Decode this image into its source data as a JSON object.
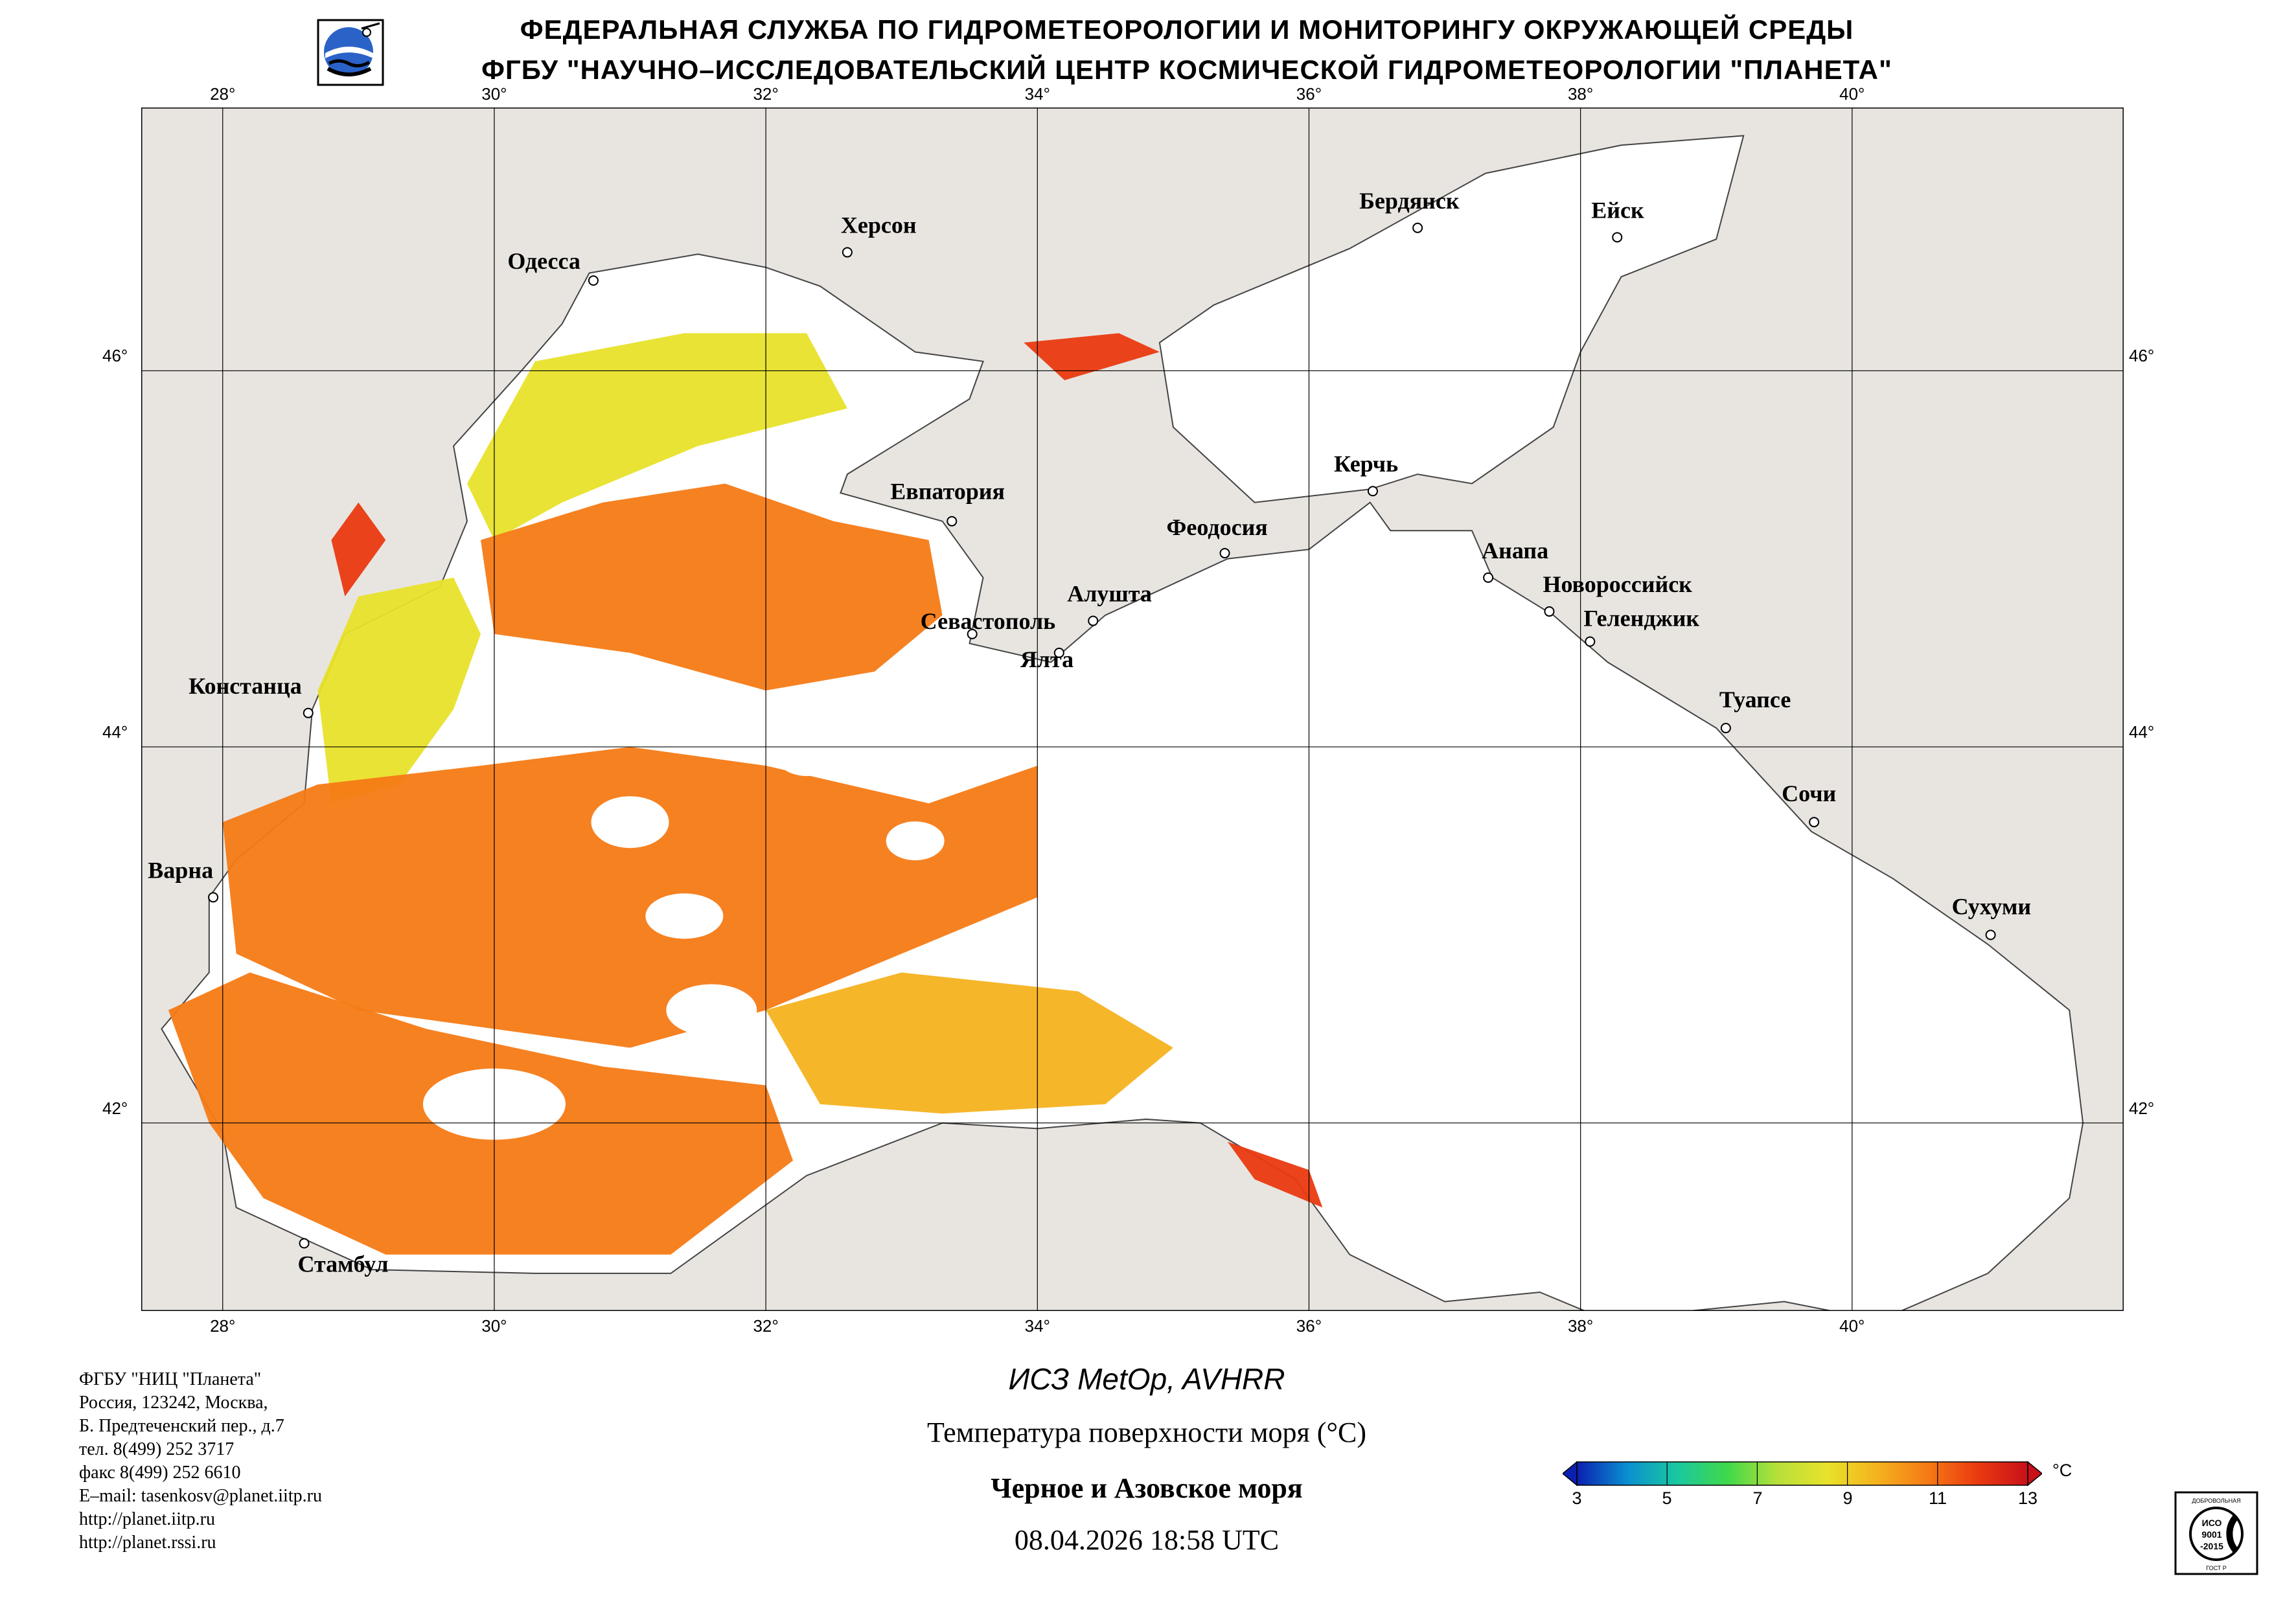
{
  "header": {
    "line1": "ФЕДЕРАЛЬНАЯ СЛУЖБА ПО ГИДРОМЕТЕОРОЛОГИИ И МОНИТОРИНГУ ОКРУЖАЮЩЕЙ СРЕДЫ",
    "line2": "ФГБУ \"НАУЧНО–ИССЛЕДОВАТЕЛЬСКИЙ ЦЕНТР КОСМИЧЕСКОЙ ГИДРОМЕТЕОРОЛОГИИ \"ПЛАНЕТА\""
  },
  "map": {
    "lon_ticks": [
      "28°",
      "30°",
      "32°",
      "34°",
      "36°",
      "38°",
      "40°"
    ],
    "lat_ticks": [
      "46°",
      "44°",
      "42°"
    ],
    "lon_range": [
      27.4,
      42.0
    ],
    "lat_range": [
      41.0,
      47.4
    ],
    "colors": {
      "land": "#e8e5e1",
      "sea_nodata": "#ffffff",
      "grid": "#000000"
    },
    "cities": [
      {
        "name": "Херсон",
        "lon": 32.6,
        "lat": 46.63
      },
      {
        "name": "Одесса",
        "lon": 30.73,
        "lat": 46.48
      },
      {
        "name": "Бердянск",
        "lon": 36.8,
        "lat": 46.76
      },
      {
        "name": "Ейск",
        "lon": 38.27,
        "lat": 46.71
      },
      {
        "name": "Евпатория",
        "lon": 33.37,
        "lat": 45.2
      },
      {
        "name": "Керчь",
        "lon": 36.47,
        "lat": 45.36
      },
      {
        "name": "Феодосия",
        "lon": 35.38,
        "lat": 45.03
      },
      {
        "name": "Анапа",
        "lon": 37.32,
        "lat": 44.9
      },
      {
        "name": "Алушта",
        "lon": 34.41,
        "lat": 44.67
      },
      {
        "name": "Севастополь",
        "lon": 33.52,
        "lat": 44.6
      },
      {
        "name": "Новороссийск",
        "lon": 37.77,
        "lat": 44.72
      },
      {
        "name": "Геленджик",
        "lon": 38.07,
        "lat": 44.56
      },
      {
        "name": "Ялта",
        "lon": 34.16,
        "lat": 44.5
      },
      {
        "name": "Констанца",
        "lon": 28.63,
        "lat": 44.18
      },
      {
        "name": "Туапсе",
        "lon": 39.07,
        "lat": 44.1
      },
      {
        "name": "Сочи",
        "lon": 39.72,
        "lat": 43.6
      },
      {
        "name": "Варна",
        "lon": 27.93,
        "lat": 43.2
      },
      {
        "name": "Сухуми",
        "lon": 41.02,
        "lat": 43.0
      },
      {
        "name": "Стамбул",
        "lon": 28.6,
        "lat": 41.36
      }
    ]
  },
  "footer": {
    "address_lines": [
      "ФГБУ \"НИЦ \"Планета\"",
      "Россия, 123242, Москва,",
      "Б. Предтеченский пер., д.7",
      "тел. 8(499) 252 3717",
      "факс 8(499) 252 6610",
      "E–mail: tasenkosv@planet.iitp.ru",
      "http://planet.iitp.ru",
      "http://planet.rssi.ru"
    ],
    "satellite": "ИСЗ MetOp, AVHRR",
    "product": "Температура поверхности моря (°C)",
    "region": "Черное и Азовское моря",
    "datetime": "08.04.2026 18:58 UTC"
  },
  "colorbar": {
    "unit": "°C",
    "ticks": [
      "3",
      "5",
      "7",
      "9",
      "11",
      "13"
    ],
    "range": [
      3,
      13
    ],
    "stops": [
      "#0b1fb0",
      "#0a8fd0",
      "#1ac8a0",
      "#3fd84a",
      "#b7e03a",
      "#e8e22a",
      "#f5b21e",
      "#f57a15",
      "#ea3a10",
      "#c8101a"
    ]
  },
  "iso": {
    "top": "ДОБРОВОЛЬНАЯ",
    "l1": "ИСО",
    "l2": "9001",
    "l3": "-2015",
    "bottom": "ГОСТ Р"
  }
}
